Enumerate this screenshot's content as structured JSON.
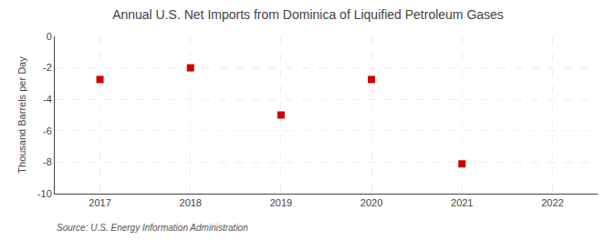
{
  "chart_data": {
    "type": "scatter",
    "title": "Annual U.S. Net Imports from Dominica of Liquified Petroleum Gases",
    "ylabel": "Thousand Barrels per Day",
    "source": "Source: U.S. Energy Information Administration",
    "x": [
      2017,
      2018,
      2019,
      2020,
      2021
    ],
    "values": [
      -2.743,
      -2.0,
      -5.0,
      -2.743,
      -8.107
    ],
    "color": "#cc0000",
    "marker": "square",
    "xlim": [
      2016.5,
      2022.5
    ],
    "xticks": [
      2017,
      2018,
      2019,
      2020,
      2021,
      2022
    ],
    "ylim": [
      -10,
      0
    ],
    "yticks": [
      0,
      -2,
      -4,
      -6,
      -8,
      -10
    ],
    "grid": true
  }
}
